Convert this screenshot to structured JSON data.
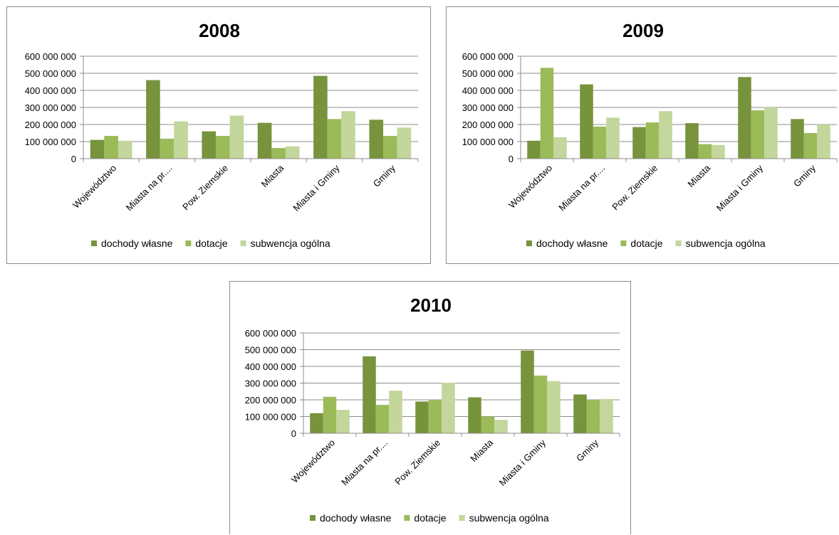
{
  "colors": {
    "dochody_wlasne": "#77933c",
    "dotacje": "#9bbb59",
    "subwencja_ogolna": "#c3d69b",
    "gridline": "#8c8c8c",
    "axis": "#8c8c8c"
  },
  "chart_data": [
    {
      "type": "bar",
      "title": "2008",
      "categories": [
        "Województwo",
        "Miasta na pr....",
        "Pow. Ziemskie",
        "Miasta",
        "Miasta i Gminy",
        "Gminy"
      ],
      "series": [
        {
          "name": "dochody własne",
          "values": [
            110000000,
            460000000,
            160000000,
            210000000,
            485000000,
            228000000
          ]
        },
        {
          "name": "dotacje",
          "values": [
            133000000,
            117000000,
            133000000,
            62000000,
            232000000,
            133000000
          ]
        },
        {
          "name": "subwencja ogólna",
          "values": [
            105000000,
            218000000,
            252000000,
            72000000,
            278000000,
            182000000
          ]
        }
      ],
      "yticks": [
        "0",
        "100 000 000",
        "200 000 000",
        "300 000 000",
        "400 000 000",
        "500 000 000",
        "600 000 000"
      ],
      "ylim": [
        0,
        600000000
      ],
      "grid": true,
      "legend_position": "bottom"
    },
    {
      "type": "bar",
      "title": "2009",
      "categories": [
        "Województwo",
        "Miasta na pr....",
        "Pow. Ziemskie",
        "Miasta",
        "Miasta i Gminy",
        "Gminy"
      ],
      "series": [
        {
          "name": "dochody własne",
          "values": [
            105000000,
            435000000,
            185000000,
            208000000,
            478000000,
            232000000
          ]
        },
        {
          "name": "dotacje",
          "values": [
            532000000,
            188000000,
            212000000,
            85000000,
            283000000,
            150000000
          ]
        },
        {
          "name": "subwencja ogólna",
          "values": [
            125000000,
            240000000,
            278000000,
            80000000,
            300000000,
            200000000
          ]
        }
      ],
      "yticks": [
        "0",
        "100 000 000",
        "200 000 000",
        "300 000 000",
        "400 000 000",
        "500 000 000",
        "600 000 000"
      ],
      "ylim": [
        0,
        600000000
      ],
      "grid": true,
      "legend_position": "bottom"
    },
    {
      "type": "bar",
      "title": "2010",
      "categories": [
        "Województwo",
        "Miasta na pr....",
        "Pow. Ziemskie",
        "Miasta",
        "Miasta i Gminy",
        "Gminy"
      ],
      "series": [
        {
          "name": "dochody własne",
          "values": [
            120000000,
            460000000,
            190000000,
            215000000,
            495000000,
            232000000
          ]
        },
        {
          "name": "dotacje",
          "values": [
            218000000,
            170000000,
            200000000,
            100000000,
            345000000,
            200000000
          ]
        },
        {
          "name": "subwencja ogólna",
          "values": [
            140000000,
            255000000,
            302000000,
            80000000,
            312000000,
            205000000
          ]
        }
      ],
      "yticks": [
        "0",
        "100 000 000",
        "200 000 000",
        "300 000 000",
        "400 000 000",
        "500 000 000",
        "600 000 000"
      ],
      "ylim": [
        0,
        600000000
      ],
      "grid": true,
      "legend_position": "bottom"
    }
  ]
}
